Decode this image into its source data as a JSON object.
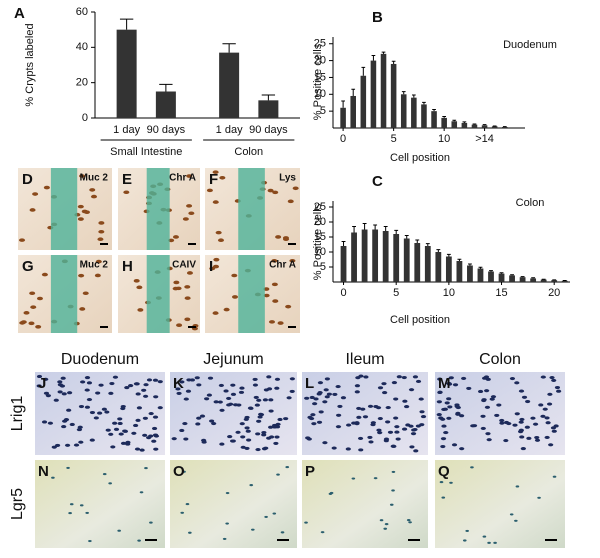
{
  "chart_data": [
    {
      "type": "bar",
      "letter": "A",
      "ylabel": "% Crypts labeled",
      "categories": [
        "1 day",
        "90 days",
        "1 day",
        "90 days"
      ],
      "groups": [
        "Small Intestine",
        "Colon"
      ],
      "values": [
        50,
        15,
        37,
        10
      ],
      "errors": [
        6,
        4,
        5,
        3
      ],
      "color": "#333333",
      "ylim": [
        0,
        60
      ],
      "yticks": [
        0,
        20,
        40,
        60
      ]
    },
    {
      "type": "bar",
      "letter": "B",
      "title": "Duodenum",
      "xlabel": "Cell position",
      "ylabel": "% Positive cells",
      "x": [
        0,
        1,
        2,
        3,
        4,
        5,
        6,
        7,
        8,
        9,
        10,
        11,
        12,
        13,
        14,
        15,
        16
      ],
      "values": [
        6,
        9.5,
        15.5,
        20,
        22,
        19,
        10,
        9,
        7,
        5,
        3,
        2,
        1.5,
        1,
        0.8,
        0.5,
        0.3
      ],
      "errors": [
        2,
        2,
        2.5,
        1.5,
        0.5,
        0.8,
        0.8,
        0.8,
        0.6,
        0.5,
        0.4,
        0.3,
        0.3,
        0.2,
        0.2,
        0.1,
        0.1
      ],
      "color": "#333333",
      "xlim": [
        -1,
        18
      ],
      "ylim": [
        0,
        27
      ],
      "xticks": [
        0,
        5,
        10,
        {
          "value": 14,
          "label": ">14"
        }
      ],
      "yticks": [
        5,
        10,
        15,
        20,
        25
      ]
    },
    {
      "type": "bar",
      "letter": "C",
      "title": "Colon",
      "xlabel": "Cell position",
      "ylabel": "% Positive cells",
      "x": [
        0,
        1,
        2,
        3,
        4,
        5,
        6,
        7,
        8,
        9,
        10,
        11,
        12,
        13,
        14,
        15,
        16,
        17,
        18,
        19,
        20,
        21
      ],
      "values": [
        12,
        16.5,
        17.5,
        17.5,
        17,
        16,
        14.5,
        13,
        12,
        10,
        8.5,
        7,
        5.5,
        4.5,
        3.5,
        2.8,
        2.2,
        1.6,
        1.2,
        0.8,
        0.6,
        0.4
      ],
      "errors": [
        1.5,
        2,
        2,
        1.5,
        1.5,
        1.2,
        1,
        1,
        0.8,
        0.8,
        0.7,
        0.6,
        0.5,
        0.4,
        0.3,
        0.3,
        0.2,
        0.2,
        0.2,
        0.1,
        0.1,
        0.1
      ],
      "color": "#333333",
      "xlim": [
        -1,
        21.5
      ],
      "ylim": [
        0,
        27
      ],
      "xticks": [
        0,
        5,
        10,
        15,
        20
      ],
      "yticks": [
        5,
        10,
        15,
        20,
        25
      ]
    }
  ],
  "stain_panels": [
    {
      "letter": "D",
      "label": "Muc 2"
    },
    {
      "letter": "E",
      "label": "Chr A"
    },
    {
      "letter": "F",
      "label": "Lys"
    },
    {
      "letter": "G",
      "label": "Muc 2"
    },
    {
      "letter": "H",
      "label": "CAIV"
    },
    {
      "letter": "I",
      "label": "Chr A"
    }
  ],
  "grid_panels": {
    "columns": [
      "Duodenum",
      "Jejunum",
      "Ileum",
      "Colon"
    ],
    "rows": [
      "Lrig1",
      "Lgr5"
    ],
    "letters": [
      [
        "J",
        "K",
        "L",
        "M"
      ],
      [
        "N",
        "O",
        "P",
        "Q"
      ]
    ]
  }
}
